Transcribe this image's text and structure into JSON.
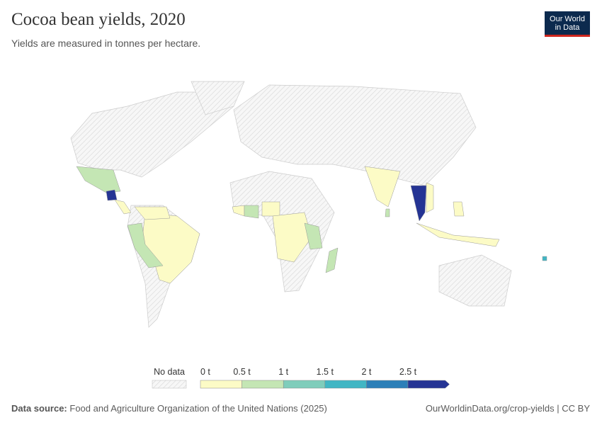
{
  "header": {
    "title": "Cocoa bean yields, 2020",
    "subtitle": "Yields are measured in tonnes per hectare.",
    "logo": [
      "Our World",
      "in Data"
    ]
  },
  "legend": {
    "no_data": "No data",
    "ticks": [
      "0 t",
      "0.5 t",
      "1 t",
      "1.5 t",
      "2 t",
      "2.5 t"
    ],
    "colors": [
      "#fcfbc6",
      "#c4e6b4",
      "#7fcdbb",
      "#41b6c4",
      "#2c7fb8",
      "#253494"
    ]
  },
  "footer": {
    "source_label": "Data source:",
    "source": "Food and Agriculture Organization of the United Nations (2025)",
    "url": "OurWorldinData.org/crop-yields | CC BY"
  }
}
